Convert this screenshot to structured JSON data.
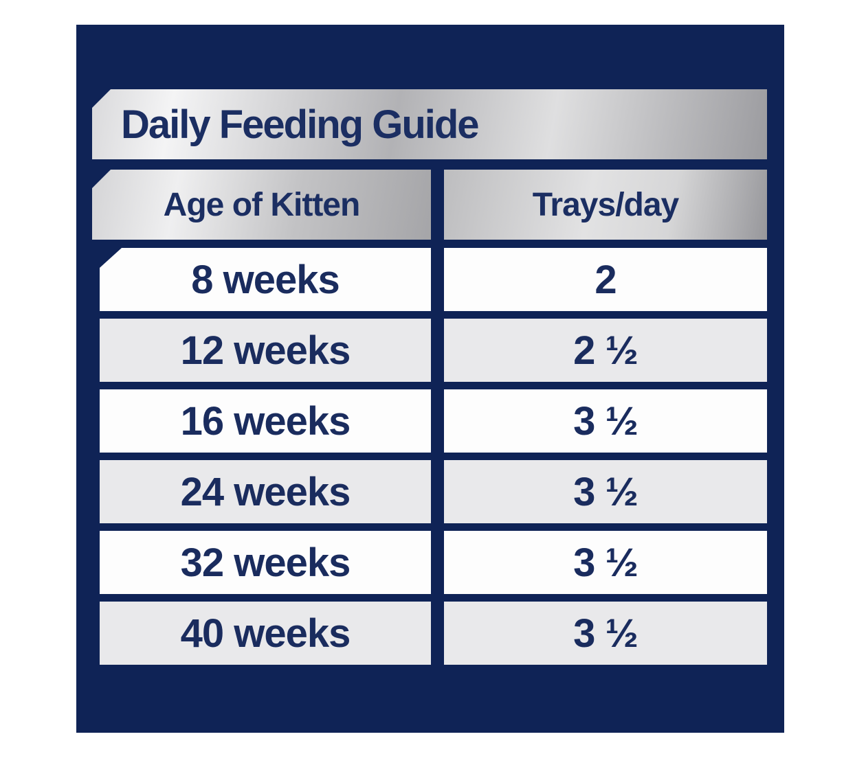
{
  "page": {
    "title": "Daily Feeding Guide"
  },
  "table": {
    "columns": [
      {
        "label": "Age of Kitten"
      },
      {
        "label": "Trays/day"
      }
    ],
    "rows": [
      {
        "age": "8 weeks",
        "trays": "2"
      },
      {
        "age": "12 weeks",
        "trays": "2 ½"
      },
      {
        "age": "16 weeks",
        "trays": "3 ½"
      },
      {
        "age": "24 weeks",
        "trays": "3 ½"
      },
      {
        "age": "32 weeks",
        "trays": "3 ½"
      },
      {
        "age": "40 weeks",
        "trays": "3 ½"
      }
    ]
  },
  "colors": {
    "panel_navy": "#0f2356",
    "text_navy": "#1a2c5e",
    "row_white": "#fdfdfd",
    "row_gray": "#e9e9eb",
    "silver_light": "#f4f4f5",
    "silver_dark": "#9b9b9f",
    "page_background": "#ffffff"
  }
}
